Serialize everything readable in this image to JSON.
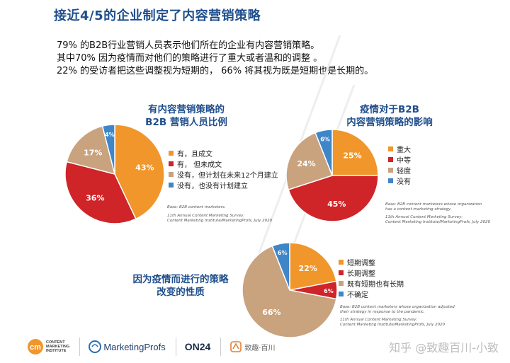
{
  "page": {
    "title": "接近4/5的企业制定了内容营销策略",
    "intro": [
      "79% 的B2B行业营销人员表示他们所在的企业有内容营销策略。",
      "其中70% 因为疫情而对他们的策略进行了重大或者温和的调整 。",
      "22% 的受访者把这些调整视为短期的， 66% 将其视为既是短期也是长期的。"
    ]
  },
  "colors": {
    "orange": "#f0962b",
    "red": "#cf2428",
    "tan": "#c9a27e",
    "blue": "#3f86c8",
    "title_blue": "#1f4e8c"
  },
  "chart_data": [
    {
      "type": "pie",
      "title_lines": [
        "有内容营销策略的",
        "B2B 营销人员比例"
      ],
      "categories": [
        "有，且成文",
        "有，  但未成文",
        "没有，但计划在未来12个月建立",
        "没有，也没有计划建立"
      ],
      "values": [
        43,
        36,
        17,
        4
      ],
      "labels": [
        "43%",
        "36%",
        "17%",
        "4%"
      ],
      "colors": [
        "#f0962b",
        "#cf2428",
        "#c9a27e",
        "#3f86c8"
      ],
      "source": [
        "Base: B2B content marketers.",
        "11th Annual Content Marketing Survey:",
        "Content Marketing Institute/MarketingProfs, July 2020"
      ]
    },
    {
      "type": "pie",
      "title_lines": [
        "疫情对于B2B",
        "内容营销策略的影响"
      ],
      "categories": [
        "重大",
        "中等",
        "轻度",
        "没有"
      ],
      "values": [
        25,
        45,
        24,
        6
      ],
      "labels": [
        "25%",
        "45%",
        "24%",
        "6%"
      ],
      "colors": [
        "#f0962b",
        "#cf2428",
        "#c9a27e",
        "#3f86c8"
      ],
      "source": [
        "Base: B2B content marketers whose organization",
        "has a content marketing strategy.",
        "11th Annual Content Marketing Survey:",
        "Content Marketing Institute/MarketingProfs, July 2020"
      ]
    },
    {
      "type": "pie",
      "title_lines": [
        "因为疫情而进行的策略",
        "改变的性质"
      ],
      "categories": [
        "短期调整",
        "长期调整",
        "既有短期也有长期",
        "不确定"
      ],
      "values": [
        22,
        6,
        66,
        6
      ],
      "labels": [
        "22%",
        "6%",
        "66%",
        "6%"
      ],
      "colors": [
        "#f0962b",
        "#cf2428",
        "#c9a27e",
        "#3f86c8"
      ],
      "source": [
        "Base: B2B content marketers whose organization adjusted",
        "their strategy in response to the pandemic.",
        "11th Annual Content Marketing Survey:",
        "Content Marketing Institute/MarketingProfs, July 2020"
      ]
    }
  ],
  "footer": {
    "logos": [
      {
        "name": "cmi",
        "mark": "cm",
        "text_lines": [
          "CONTENT",
          "MARKETING",
          "INSTITUTE"
        ]
      },
      {
        "name": "marketingprofs",
        "text": "MarketingProfs"
      },
      {
        "name": "on24",
        "text": "ON24"
      },
      {
        "name": "zhiqu",
        "text": "致趣·百川"
      }
    ],
    "watermark": "知乎 @致趣百川-小致"
  }
}
